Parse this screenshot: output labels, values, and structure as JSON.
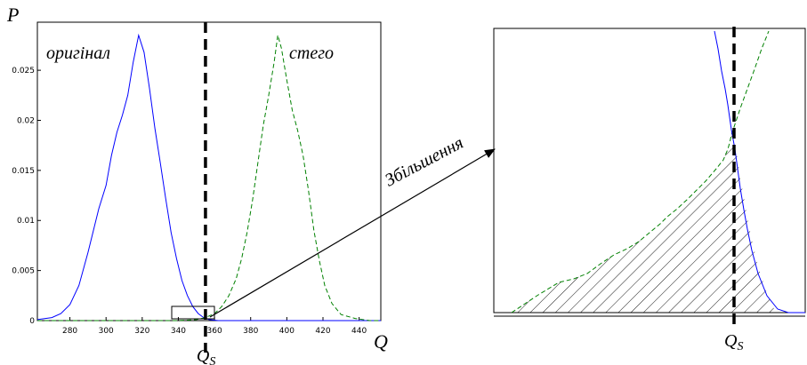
{
  "chart_data": [
    {
      "type": "line",
      "ylabel": "P",
      "xlabel": "Q",
      "xlim": [
        262,
        452
      ],
      "ylim": [
        0,
        0.0298
      ],
      "x_ticks": [
        "280",
        "300",
        "320",
        "340",
        "360",
        "380",
        "400",
        "420",
        "440"
      ],
      "y_ticks": [
        "0",
        "0.005",
        "0.01",
        "0.015",
        "0.02",
        "0.025"
      ],
      "grid": false,
      "annotations": {
        "threshold_label": "Q",
        "threshold_sub": "S",
        "threshold_x": 355,
        "zoom_label": "Збільшення"
      },
      "series": [
        {
          "name": "оригінал",
          "color": "#0000ff",
          "style": "solid",
          "points": [
            [
              262,
              0.0001
            ],
            [
              270,
              0.0003
            ],
            [
              275,
              0.0007
            ],
            [
              280,
              0.0016
            ],
            [
              285,
              0.0035
            ],
            [
              290,
              0.0068
            ],
            [
              293,
              0.009
            ],
            [
              296,
              0.0112
            ],
            [
              300,
              0.0135
            ],
            [
              303,
              0.0165
            ],
            [
              306,
              0.0188
            ],
            [
              309,
              0.0205
            ],
            [
              312,
              0.0225
            ],
            [
              315,
              0.0258
            ],
            [
              318,
              0.0285
            ],
            [
              321,
              0.0268
            ],
            [
              324,
              0.0232
            ],
            [
              327,
              0.0192
            ],
            [
              330,
              0.0158
            ],
            [
              333,
              0.0122
            ],
            [
              336,
              0.0088
            ],
            [
              339,
              0.0062
            ],
            [
              342,
              0.004
            ],
            [
              345,
              0.0025
            ],
            [
              348,
              0.0014
            ],
            [
              351,
              0.0007
            ],
            [
              354,
              0.0003
            ],
            [
              357,
              0.0001
            ],
            [
              362,
              0.0
            ],
            [
              452,
              0.0
            ]
          ]
        },
        {
          "name": "стего",
          "color": "#008000",
          "style": "dashed",
          "points": [
            [
              262,
              0.0
            ],
            [
              340,
              0.0
            ],
            [
              350,
              0.0001
            ],
            [
              355,
              0.0003
            ],
            [
              360,
              0.0007
            ],
            [
              364,
              0.0014
            ],
            [
              368,
              0.0025
            ],
            [
              372,
              0.0042
            ],
            [
              375,
              0.0062
            ],
            [
              378,
              0.0088
            ],
            [
              381,
              0.012
            ],
            [
              384,
              0.0158
            ],
            [
              387,
              0.0195
            ],
            [
              390,
              0.0225
            ],
            [
              393,
              0.0258
            ],
            [
              395,
              0.0285
            ],
            [
              397,
              0.0272
            ],
            [
              400,
              0.024
            ],
            [
              403,
              0.021
            ],
            [
              406,
              0.019
            ],
            [
              409,
              0.0165
            ],
            [
              412,
              0.013
            ],
            [
              415,
              0.009
            ],
            [
              418,
              0.006
            ],
            [
              421,
              0.0035
            ],
            [
              425,
              0.0017
            ],
            [
              430,
              0.0006
            ],
            [
              438,
              0.0002
            ],
            [
              446,
              0.0
            ],
            [
              452,
              0.0
            ]
          ]
        }
      ]
    },
    {
      "type": "line",
      "xlabel": "Q",
      "threshold_label": "Q",
      "threshold_sub": "S",
      "note": "magnified view of the boxed region"
    }
  ]
}
